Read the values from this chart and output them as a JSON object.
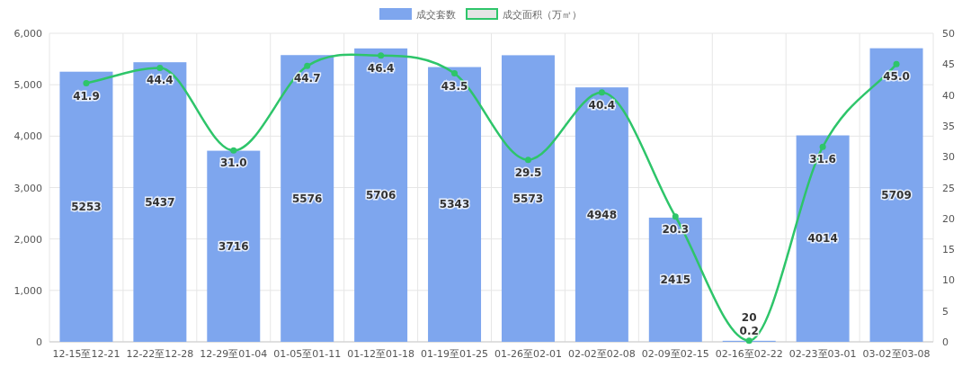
{
  "chart_data": {
    "type": "bar",
    "categories": [
      "12-15至12-21",
      "12-22至12-28",
      "12-29至01-04",
      "01-05至01-11",
      "01-12至01-18",
      "01-19至01-25",
      "01-26至02-01",
      "02-02至02-08",
      "02-09至02-15",
      "02-16至02-22",
      "02-23至03-01",
      "03-02至03-08"
    ],
    "series": [
      {
        "name": "成交套数",
        "color": "#7ea6ee",
        "values": [
          5253,
          5437,
          3716,
          5576,
          5706,
          5343,
          5573,
          4948,
          2415,
          20,
          4014,
          5709
        ]
      },
      {
        "name": "成交面积（万㎡）",
        "type": "line",
        "axis": "y2",
        "color": "#2ec56a",
        "values": [
          41.9,
          44.4,
          31.0,
          44.7,
          46.4,
          43.5,
          29.5,
          40.4,
          20.3,
          0.2,
          31.6,
          45.0
        ],
        "value_labels": [
          "41.9",
          "44.4",
          "31.0",
          "44.7",
          "46.4",
          "43.5",
          "29.5",
          "40.4",
          "20.3",
          "0.2",
          "31.6",
          "45.0"
        ]
      }
    ],
    "ylim": [
      0,
      6000
    ],
    "yticks": [
      0,
      {
        "value": 1000,
        "label": "1,000"
      },
      {
        "value": 2000,
        "label": "2,000"
      },
      {
        "value": 3000,
        "label": "3,000"
      },
      {
        "value": 4000,
        "label": "4,000"
      },
      {
        "value": 5000,
        "label": "5,000"
      },
      {
        "value": 6000,
        "label": "6,000"
      }
    ],
    "y2lim": [
      0,
      50
    ],
    "y2ticks": [
      0,
      5,
      10,
      15,
      20,
      25,
      30,
      35,
      40,
      45,
      50
    ],
    "grid": true,
    "legend": "top",
    "data_labels": true,
    "marker": "circle"
  }
}
